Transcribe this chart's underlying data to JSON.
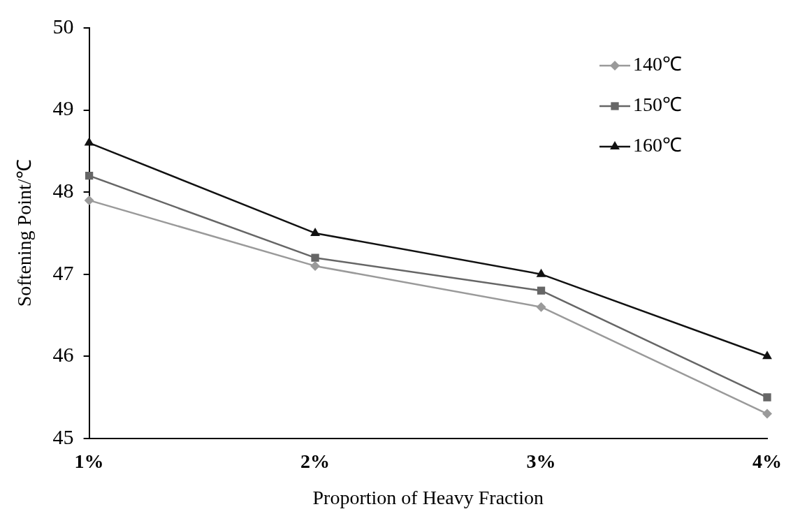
{
  "chart_data": {
    "type": "line",
    "xlabel": "Proportion of Heavy Fraction",
    "ylabel": "Softening Point/℃",
    "categories": [
      "1%",
      "2%",
      "3%",
      "4%"
    ],
    "series": [
      {
        "name": "140℃",
        "color": "#9a9a9a",
        "marker": "diamond",
        "values": [
          47.9,
          47.1,
          46.6,
          45.3
        ]
      },
      {
        "name": "150℃",
        "color": "#666666",
        "marker": "square",
        "values": [
          48.2,
          47.2,
          46.8,
          45.5
        ]
      },
      {
        "name": "160℃",
        "color": "#111111",
        "marker": "triangle",
        "values": [
          48.6,
          47.5,
          47.0,
          46.0
        ]
      }
    ],
    "ylim": [
      45,
      50
    ],
    "yticks": [
      45,
      46,
      47,
      48,
      49,
      50
    ],
    "grid": false,
    "legend": "top right",
    "line_style": "solid"
  }
}
